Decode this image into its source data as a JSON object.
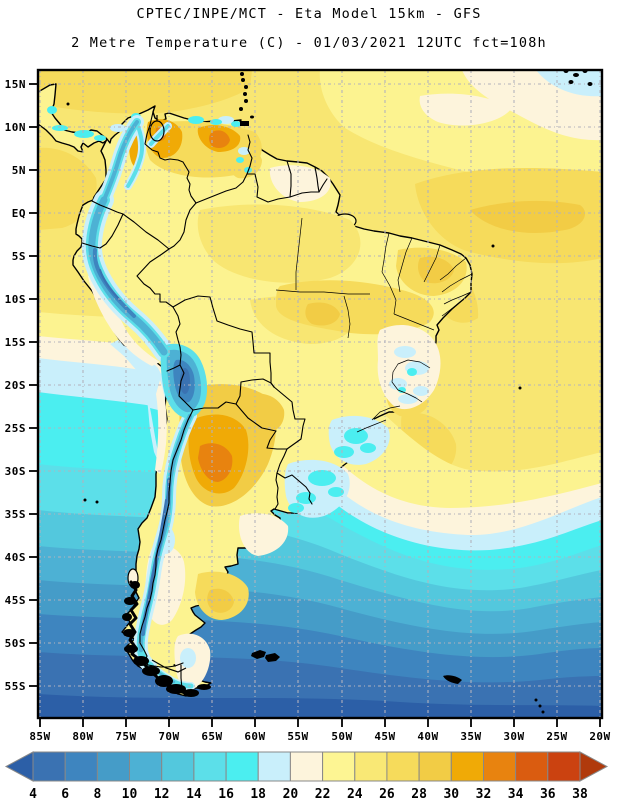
{
  "titles": {
    "line1": "CPTEC/INPE/MCT -  Eta Model 15km - GFS",
    "line2": "2 Metre Temperature (C) - 01/03/2021 12UTC fct=108h"
  },
  "axes": {
    "lat_labels": [
      "15N",
      "10N",
      "5N",
      "EQ",
      "5S",
      "10S",
      "15S",
      "20S",
      "25S",
      "30S",
      "35S",
      "40S",
      "45S",
      "50S",
      "55S"
    ],
    "lon_labels": [
      "85W",
      "80W",
      "75W",
      "70W",
      "65W",
      "60W",
      "55W",
      "50W",
      "45W",
      "40W",
      "35W",
      "30W",
      "25W",
      "20W"
    ]
  },
  "colorbar": {
    "tick_labels": [
      "4",
      "6",
      "8",
      "10",
      "12",
      "14",
      "16",
      "18",
      "20",
      "22",
      "24",
      "26",
      "28",
      "30",
      "32",
      "34",
      "36",
      "38"
    ],
    "cell_colors": [
      "#3a72b2",
      "#3e85bf",
      "#459cc8",
      "#4db1d4",
      "#53c8dd",
      "#5cdfe9",
      "#4beef0",
      "#c9effb",
      "#fdf4dc",
      "#fdf593",
      "#f9e875",
      "#f6db5b",
      "#f2cc45",
      "#f0aa06",
      "#e8830f",
      "#da5c10",
      "#cb4210"
    ],
    "below_min_color": "#2c5fa7",
    "above_max_color": "#b03a0c",
    "variable": "2 Metre Temperature (C)"
  },
  "palette": {
    "lt4": "#2c5fa7",
    "t4_6": "#3a72b2",
    "t6_8": "#3e85bf",
    "t8_10": "#459cc8",
    "t10_12": "#4db1d4",
    "t12_14": "#53c8dd",
    "t14_16": "#5cdfe9",
    "t16_18": "#4beef0",
    "t18_20": "#c9effb",
    "t20_22": "#fdf4dc",
    "t22_24": "#fcf390",
    "t24_26": "#f8e672",
    "t26_28": "#f6db5b",
    "t28_30": "#f2cc45",
    "t30_32": "#f0aa06",
    "t32_34": "#e8830f",
    "t34_36": "#da5c10",
    "t36_38": "#cb4210",
    "gt38": "#b03a0c",
    "grid": "#b2b2bd",
    "frame": "#000000"
  }
}
